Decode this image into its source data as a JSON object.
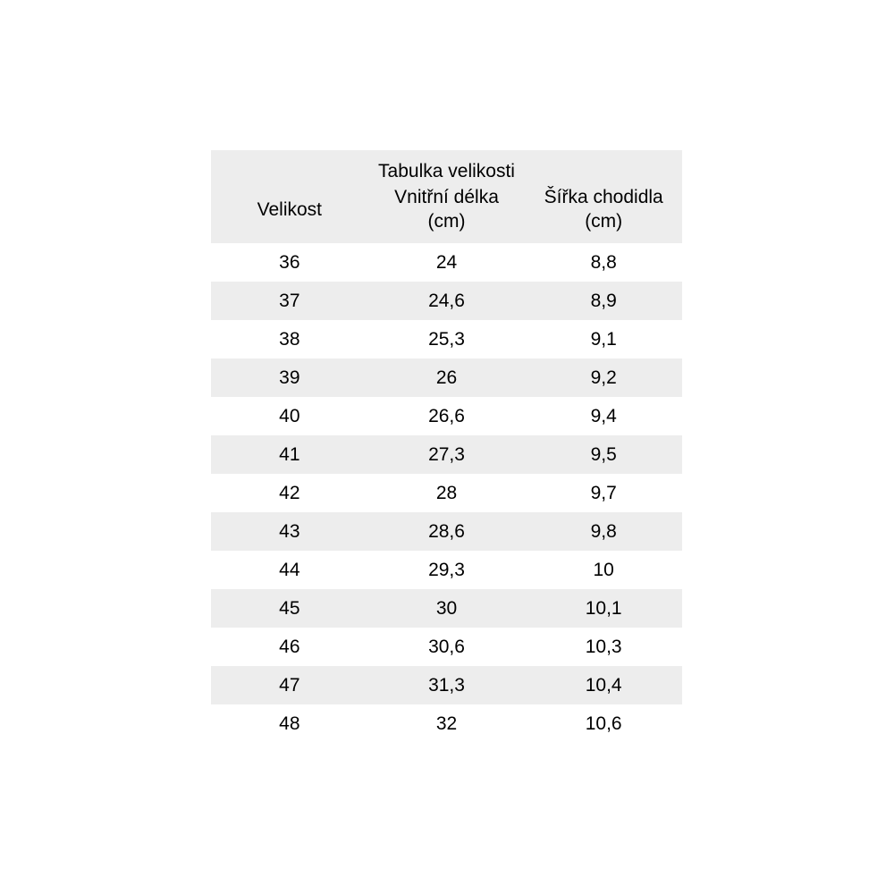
{
  "page": {
    "background": "#ffffff"
  },
  "table": {
    "title": "Tabulka velikosti",
    "columns": [
      "Velikost",
      "Vnitřní délka (cm)",
      "Šířka chodidla (cm)"
    ],
    "stripe_color": "#ededed",
    "text_color": "#000000",
    "rows": [
      [
        "36",
        "24",
        "8,8"
      ],
      [
        "37",
        "24,6",
        "8,9"
      ],
      [
        "38",
        "25,3",
        "9,1"
      ],
      [
        "39",
        "26",
        "9,2"
      ],
      [
        "40",
        "26,6",
        "9,4"
      ],
      [
        "41",
        "27,3",
        "9,5"
      ],
      [
        "42",
        "28",
        "9,7"
      ],
      [
        "43",
        "28,6",
        "9,8"
      ],
      [
        "44",
        "29,3",
        "10"
      ],
      [
        "45",
        "30",
        "10,1"
      ],
      [
        "46",
        "30,6",
        "10,3"
      ],
      [
        "47",
        "31,3",
        "10,4"
      ],
      [
        "48",
        "32",
        "10,6"
      ]
    ]
  },
  "chart_data": {
    "type": "table",
    "title": "Tabulka velikosti",
    "columns": [
      "Velikost",
      "Vnitřní délka (cm)",
      "Šířka chodidla (cm)"
    ],
    "rows": [
      [
        36,
        24,
        8.8
      ],
      [
        37,
        24.6,
        8.9
      ],
      [
        38,
        25.3,
        9.1
      ],
      [
        39,
        26,
        9.2
      ],
      [
        40,
        26.6,
        9.4
      ],
      [
        41,
        27.3,
        9.5
      ],
      [
        42,
        28,
        9.7
      ],
      [
        43,
        28.6,
        9.8
      ],
      [
        44,
        29.3,
        10
      ],
      [
        45,
        30,
        10.1
      ],
      [
        46,
        30.6,
        10.3
      ],
      [
        47,
        31.3,
        10.4
      ],
      [
        48,
        32,
        10.6
      ]
    ],
    "layout": {
      "decimal_separator": ",",
      "zebra_striping": true,
      "first_data_row_background": "white"
    }
  }
}
